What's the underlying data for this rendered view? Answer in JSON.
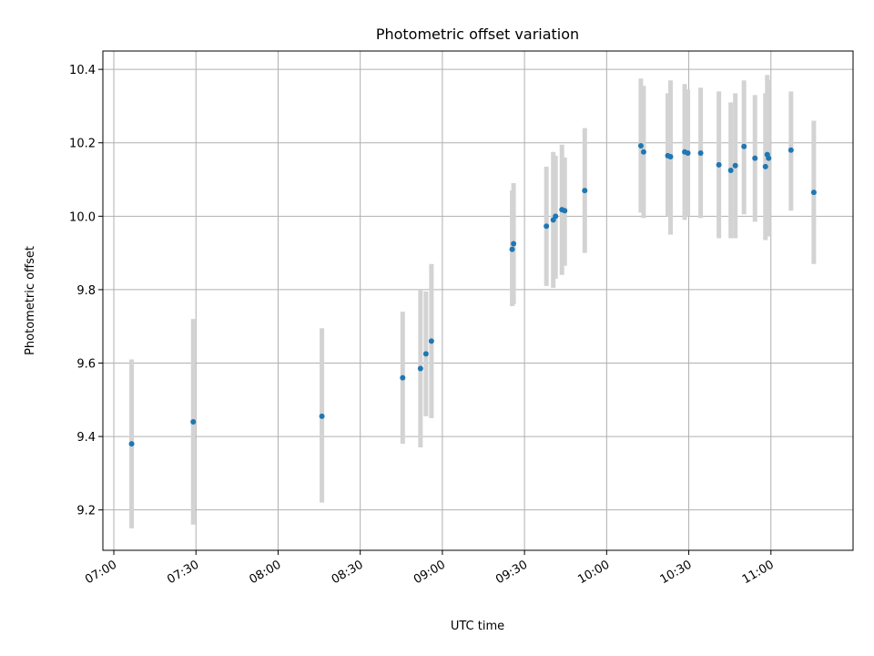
{
  "chart_data": {
    "type": "scatter",
    "title": "Photometric offset variation",
    "xlabel": "UTC time",
    "ylabel": "Photometric offset",
    "x_axis": {
      "type": "time",
      "min": "06:56",
      "max": "11:30",
      "ticks": [
        "07:00",
        "07:30",
        "08:00",
        "08:30",
        "09:00",
        "09:30",
        "10:00",
        "10:30",
        "11:00"
      ]
    },
    "y_axis": {
      "min": 9.09,
      "max": 10.45,
      "ticks": [
        "9.2",
        "9.4",
        "9.6",
        "9.8",
        "10.0",
        "10.2",
        "10.4"
      ]
    },
    "grid": true,
    "point_color": "#1f77b4",
    "errorbar_color": "#d3d3d3",
    "points": [
      {
        "time": "07:06:30",
        "y": 9.38,
        "err_low": 9.15,
        "err_high": 9.61
      },
      {
        "time": "07:29:00",
        "y": 9.44,
        "err_low": 9.16,
        "err_high": 9.72
      },
      {
        "time": "08:16:00",
        "y": 9.455,
        "err_low": 9.22,
        "err_high": 9.695
      },
      {
        "time": "08:45:30",
        "y": 9.56,
        "err_low": 9.38,
        "err_high": 9.74
      },
      {
        "time": "08:52:00",
        "y": 9.585,
        "err_low": 9.37,
        "err_high": 9.8
      },
      {
        "time": "08:54:00",
        "y": 9.625,
        "err_low": 9.455,
        "err_high": 9.795
      },
      {
        "time": "08:56:00",
        "y": 9.66,
        "err_low": 9.45,
        "err_high": 9.87
      },
      {
        "time": "09:25:30",
        "y": 9.91,
        "err_low": 9.755,
        "err_high": 10.07
      },
      {
        "time": "09:26:00",
        "y": 9.925,
        "err_low": 9.76,
        "err_high": 10.09
      },
      {
        "time": "09:38:00",
        "y": 9.973,
        "err_low": 9.81,
        "err_high": 10.135
      },
      {
        "time": "09:40:30",
        "y": 9.99,
        "err_low": 9.805,
        "err_high": 10.175
      },
      {
        "time": "09:41:20",
        "y": 10.0,
        "err_low": 9.83,
        "err_high": 10.165
      },
      {
        "time": "09:43:40",
        "y": 10.018,
        "err_low": 9.84,
        "err_high": 10.195
      },
      {
        "time": "09:44:40",
        "y": 10.015,
        "err_low": 9.865,
        "err_high": 10.16
      },
      {
        "time": "09:52:00",
        "y": 10.07,
        "err_low": 9.9,
        "err_high": 10.24
      },
      {
        "time": "10:12:30",
        "y": 10.192,
        "err_low": 10.01,
        "err_high": 10.375
      },
      {
        "time": "10:13:30",
        "y": 10.175,
        "err_low": 9.995,
        "err_high": 10.355
      },
      {
        "time": "10:22:20",
        "y": 10.165,
        "err_low": 10.0,
        "err_high": 10.335
      },
      {
        "time": "10:23:20",
        "y": 10.162,
        "err_low": 9.95,
        "err_high": 10.37
      },
      {
        "time": "10:28:30",
        "y": 10.175,
        "err_low": 9.99,
        "err_high": 10.36
      },
      {
        "time": "10:29:40",
        "y": 10.172,
        "err_low": 10.0,
        "err_high": 10.345
      },
      {
        "time": "10:34:20",
        "y": 10.172,
        "err_low": 9.995,
        "err_high": 10.35
      },
      {
        "time": "10:41:00",
        "y": 10.14,
        "err_low": 9.94,
        "err_high": 10.34
      },
      {
        "time": "10:45:20",
        "y": 10.125,
        "err_low": 9.94,
        "err_high": 10.31
      },
      {
        "time": "10:47:00",
        "y": 10.138,
        "err_low": 9.94,
        "err_high": 10.335
      },
      {
        "time": "10:50:10",
        "y": 10.19,
        "err_low": 10.005,
        "err_high": 10.37
      },
      {
        "time": "10:54:10",
        "y": 10.158,
        "err_low": 9.985,
        "err_high": 10.33
      },
      {
        "time": "10:58:00",
        "y": 10.135,
        "err_low": 9.935,
        "err_high": 10.335
      },
      {
        "time": "10:58:40",
        "y": 10.168,
        "err_low": 9.945,
        "err_high": 10.385
      },
      {
        "time": "10:59:10",
        "y": 10.158,
        "err_low": 9.945,
        "err_high": 10.37
      },
      {
        "time": "11:07:20",
        "y": 10.18,
        "err_low": 10.015,
        "err_high": 10.34
      },
      {
        "time": "11:15:40",
        "y": 10.065,
        "err_low": 9.87,
        "err_high": 10.26
      }
    ]
  }
}
